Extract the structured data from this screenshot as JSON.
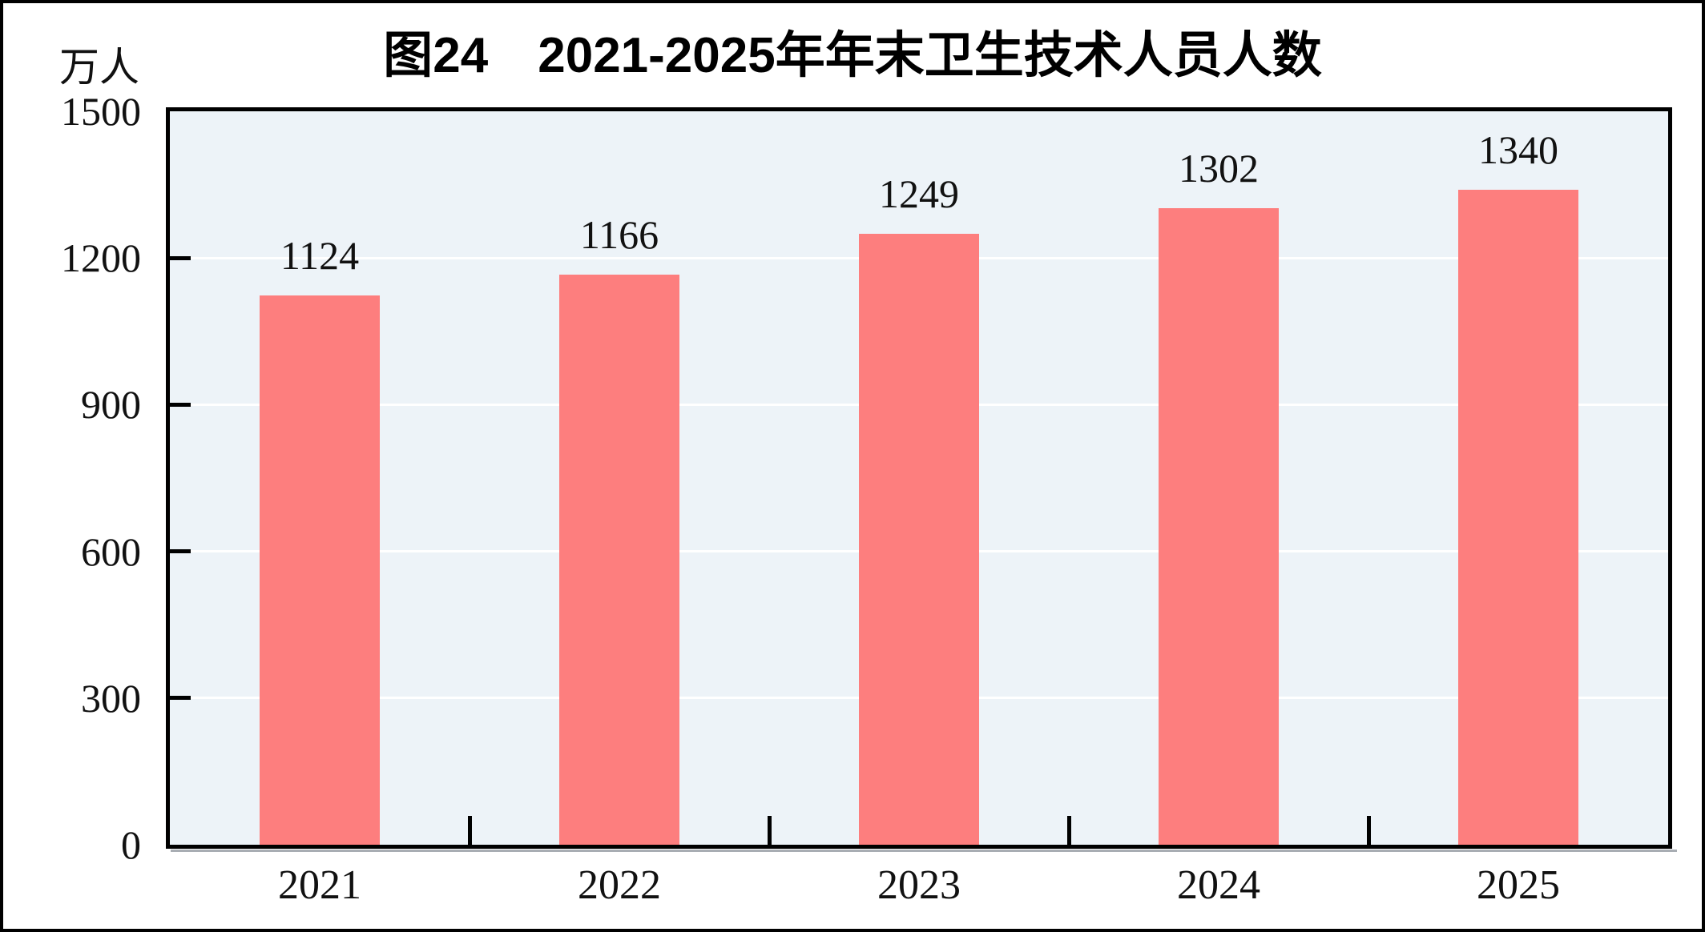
{
  "chart_data": {
    "type": "bar",
    "title": "图24　2021-2025年年末卫生技术人员人数",
    "unit_label": "万人",
    "categories": [
      "2021",
      "2022",
      "2023",
      "2024",
      "2025"
    ],
    "values": [
      1124,
      1166,
      1249,
      1302,
      1340
    ],
    "data_labels": [
      "1124",
      "1166",
      "1249",
      "1302",
      "1340"
    ],
    "ylim": [
      0,
      1500
    ],
    "yticks": [
      0,
      300,
      600,
      900,
      1200,
      1500
    ],
    "xlabel": "",
    "ylabel": "万人",
    "grid": "horizontal-white",
    "legend_position": "none",
    "colors": {
      "bar": "#FD7E7E",
      "plot_background": "#EDF3F8",
      "gridline": "#FFFFFF",
      "axis": "#000000",
      "axis_shadow": "#A8ADB3",
      "text": "#111111",
      "page_background": "#FFFFFF",
      "frame": "#000000"
    }
  }
}
